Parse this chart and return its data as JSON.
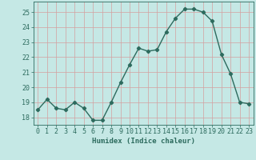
{
  "x": [
    0,
    1,
    2,
    3,
    4,
    5,
    6,
    7,
    8,
    9,
    10,
    11,
    12,
    13,
    14,
    15,
    16,
    17,
    18,
    19,
    20,
    21,
    22,
    23
  ],
  "y": [
    18.5,
    19.2,
    18.6,
    18.5,
    19.0,
    18.6,
    17.8,
    17.8,
    19.0,
    20.3,
    21.5,
    22.6,
    22.4,
    22.5,
    23.7,
    24.6,
    25.2,
    25.2,
    25.0,
    24.4,
    22.2,
    20.9,
    19.0,
    18.9
  ],
  "line_color": "#2d6b5e",
  "marker": "D",
  "marker_size": 2.2,
  "bg_color": "#c5e8e5",
  "grid_color": "#d4a0a0",
  "xlabel": "Humidex (Indice chaleur)",
  "ylim": [
    17.5,
    25.7
  ],
  "xlim": [
    -0.5,
    23.5
  ],
  "yticks": [
    18,
    19,
    20,
    21,
    22,
    23,
    24,
    25
  ],
  "xticks": [
    0,
    1,
    2,
    3,
    4,
    5,
    6,
    7,
    8,
    9,
    10,
    11,
    12,
    13,
    14,
    15,
    16,
    17,
    18,
    19,
    20,
    21,
    22,
    23
  ],
  "xlabel_fontsize": 6.5,
  "tick_fontsize": 6.0,
  "linewidth": 1.0
}
